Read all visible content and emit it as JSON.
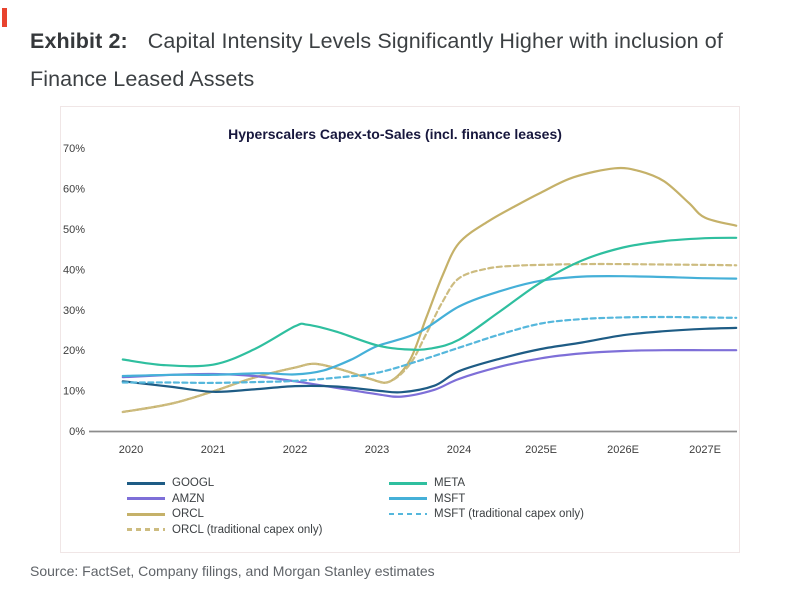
{
  "page": {
    "heading_bold": "Exhibit 2:",
    "heading_rest": "Capital Intensity Levels Significantly Higher with inclusion of Finance Leased Assets",
    "source": "Source: FactSet, Company filings, and Morgan Stanley estimates"
  },
  "chart_data": {
    "type": "line",
    "title": "Hyperscalers Capex-to-Sales (incl. finance leases)",
    "title_color": "#17173d",
    "xlabel": "",
    "ylabel": "",
    "x_ticks": [
      "2020",
      "2021",
      "2022",
      "2023",
      "2024",
      "2025E",
      "2026E",
      "2027E"
    ],
    "x_tick_years": [
      2020,
      2021,
      2022,
      2023,
      2024,
      2025,
      2026,
      2027
    ],
    "y_ticks": [
      "70%",
      "60%",
      "50%",
      "40%",
      "30%",
      "20%",
      "10%",
      "0%"
    ],
    "y_tick_values": [
      70,
      60,
      50,
      40,
      30,
      20,
      10,
      0
    ],
    "ylim": [
      0,
      70
    ],
    "grid": false,
    "axis_color": "#8c8c8c",
    "tick_label_color": "#3d3d3d",
    "legend_position": "bottom-two-columns",
    "legend_columns": {
      "left": [
        "GOOGL",
        "AMZN",
        "ORCL",
        "ORCL (traditional capex only)"
      ],
      "right": [
        "META",
        "MSFT",
        "MSFT (traditional capex only)"
      ]
    },
    "series": [
      {
        "name": "ORCL",
        "color": "#c5b169",
        "dash": false,
        "points": [
          [
            2019.9,
            4.7
          ],
          [
            2020.5,
            6.8
          ],
          [
            2021,
            9.8
          ],
          [
            2021.5,
            13.2
          ],
          [
            2022,
            15.7
          ],
          [
            2022.25,
            16.6
          ],
          [
            2022.6,
            15.0
          ],
          [
            2022.9,
            13.0
          ],
          [
            2023.15,
            12.2
          ],
          [
            2023.4,
            17.5
          ],
          [
            2023.6,
            28.0
          ],
          [
            2023.8,
            38.5
          ],
          [
            2024,
            46.5
          ],
          [
            2024.35,
            51.8
          ],
          [
            2024.7,
            55.8
          ],
          [
            2025,
            59.0
          ],
          [
            2025.4,
            62.8
          ],
          [
            2025.9,
            65.0
          ],
          [
            2026.2,
            64.3
          ],
          [
            2026.5,
            61.8
          ],
          [
            2026.8,
            56.5
          ],
          [
            2027,
            52.8
          ],
          [
            2027.38,
            50.8
          ]
        ]
      },
      {
        "name": "ORCL (traditional capex only)",
        "color": "#cdbc80",
        "dash": true,
        "points": [
          [
            2019.9,
            4.7
          ],
          [
            2020.5,
            6.8
          ],
          [
            2021,
            9.8
          ],
          [
            2021.5,
            13.2
          ],
          [
            2022,
            15.7
          ],
          [
            2022.25,
            16.6
          ],
          [
            2022.6,
            15.0
          ],
          [
            2022.9,
            13.0
          ],
          [
            2023.15,
            12.2
          ],
          [
            2023.4,
            16.5
          ],
          [
            2023.6,
            24.0
          ],
          [
            2023.8,
            32.0
          ],
          [
            2024,
            37.8
          ],
          [
            2024.35,
            40.2
          ],
          [
            2024.7,
            40.9
          ],
          [
            2025,
            41.1
          ],
          [
            2025.5,
            41.3
          ],
          [
            2026,
            41.3
          ],
          [
            2026.5,
            41.2
          ],
          [
            2027,
            41.1
          ],
          [
            2027.38,
            41.0
          ]
        ]
      },
      {
        "name": "AMZN",
        "color": "#7e6fd8",
        "dash": false,
        "points": [
          [
            2019.9,
            13.3
          ],
          [
            2020.5,
            13.9
          ],
          [
            2021,
            14.1
          ],
          [
            2021.5,
            13.6
          ],
          [
            2022,
            12.3
          ],
          [
            2022.5,
            10.7
          ],
          [
            2023,
            9.1
          ],
          [
            2023.3,
            8.5
          ],
          [
            2023.7,
            10.2
          ],
          [
            2024,
            12.9
          ],
          [
            2024.5,
            15.9
          ],
          [
            2025,
            18.0
          ],
          [
            2025.5,
            19.2
          ],
          [
            2026,
            19.8
          ],
          [
            2026.5,
            20.0
          ],
          [
            2027,
            20.0
          ],
          [
            2027.38,
            20.0
          ]
        ]
      },
      {
        "name": "GOOGL",
        "color": "#1e5c85",
        "dash": false,
        "points": [
          [
            2019.9,
            12.3
          ],
          [
            2020.5,
            10.9
          ],
          [
            2021,
            9.7
          ],
          [
            2021.5,
            10.3
          ],
          [
            2022,
            11.1
          ],
          [
            2022.5,
            11.0
          ],
          [
            2023,
            10.0
          ],
          [
            2023.3,
            9.6
          ],
          [
            2023.7,
            11.2
          ],
          [
            2024,
            14.8
          ],
          [
            2024.5,
            17.9
          ],
          [
            2025,
            20.3
          ],
          [
            2025.5,
            21.9
          ],
          [
            2026,
            23.7
          ],
          [
            2026.5,
            24.7
          ],
          [
            2027,
            25.3
          ],
          [
            2027.38,
            25.5
          ]
        ]
      },
      {
        "name": "MSFT",
        "color": "#45b0d8",
        "dash": false,
        "points": [
          [
            2019.9,
            13.6
          ],
          [
            2020.5,
            13.9
          ],
          [
            2021,
            13.9
          ],
          [
            2021.6,
            14.3
          ],
          [
            2022,
            14.0
          ],
          [
            2022.35,
            15.0
          ],
          [
            2022.7,
            17.8
          ],
          [
            2023,
            21.0
          ],
          [
            2023.5,
            24.3
          ],
          [
            2024,
            30.8
          ],
          [
            2024.5,
            34.6
          ],
          [
            2025,
            37.2
          ],
          [
            2025.5,
            38.2
          ],
          [
            2026,
            38.3
          ],
          [
            2026.5,
            38.1
          ],
          [
            2027,
            37.8
          ],
          [
            2027.38,
            37.7
          ]
        ]
      },
      {
        "name": "META",
        "color": "#2fbf9f",
        "dash": false,
        "points": [
          [
            2019.9,
            17.7
          ],
          [
            2020.4,
            16.3
          ],
          [
            2021,
            16.4
          ],
          [
            2021.5,
            20.2
          ],
          [
            2022,
            25.9
          ],
          [
            2022.15,
            26.3
          ],
          [
            2022.5,
            24.6
          ],
          [
            2023,
            21.2
          ],
          [
            2023.35,
            20.2
          ],
          [
            2023.65,
            20.4
          ],
          [
            2024,
            22.6
          ],
          [
            2024.5,
            29.6
          ],
          [
            2025,
            36.8
          ],
          [
            2025.5,
            42.2
          ],
          [
            2026,
            45.4
          ],
          [
            2026.5,
            47.0
          ],
          [
            2027,
            47.7
          ],
          [
            2027.38,
            47.8
          ]
        ]
      },
      {
        "name": "MSFT (traditional capex only)",
        "color": "#55b7dc",
        "dash": true,
        "points": [
          [
            2019.9,
            12.0
          ],
          [
            2020.5,
            12.0
          ],
          [
            2021,
            11.9
          ],
          [
            2021.5,
            12.1
          ],
          [
            2022,
            12.4
          ],
          [
            2022.5,
            13.2
          ],
          [
            2023,
            14.4
          ],
          [
            2023.5,
            17.3
          ],
          [
            2024,
            20.6
          ],
          [
            2024.5,
            23.9
          ],
          [
            2025,
            26.6
          ],
          [
            2025.5,
            27.7
          ],
          [
            2026,
            28.1
          ],
          [
            2026.5,
            28.2
          ],
          [
            2027,
            28.1
          ],
          [
            2027.38,
            28.0
          ]
        ]
      }
    ]
  }
}
